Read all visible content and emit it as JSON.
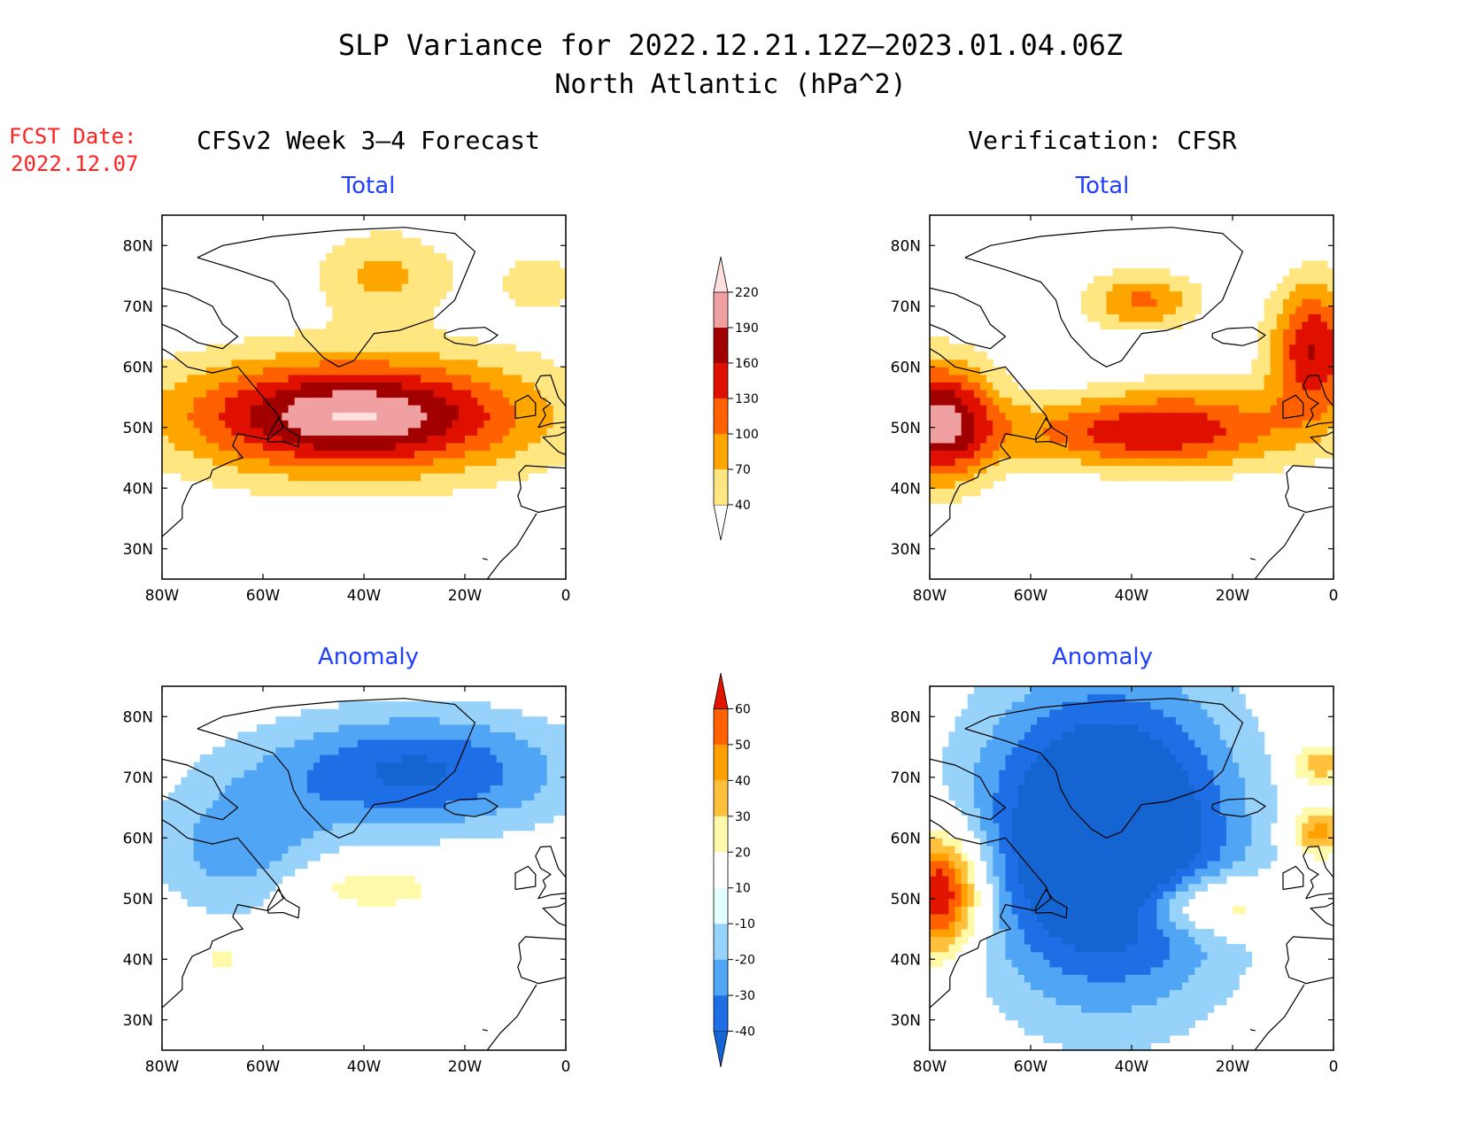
{
  "title_line1": "SLP Variance for 2022.12.21.12Z–2023.01.04.06Z",
  "title_line2": "North Atlantic (hPa^2)",
  "fcst_label": "FCST Date:",
  "fcst_date": "2022.12.07",
  "left_column_title": "CFSv2 Week 3–4 Forecast",
  "right_column_title": "Verification: CFSR",
  "colors": {
    "title": "#000000",
    "fcst": "#ff2020",
    "panel_title": "#2040ff",
    "coast": "#000000",
    "total_scale": [
      "#ffffff",
      "#ffe680",
      "#ffa500",
      "#ff6000",
      "#e01000",
      "#a00000",
      "#f0a0a0",
      "#ffe0e0"
    ],
    "anomaly_scale": [
      "#1464d2",
      "#1e6ee6",
      "#50a5f5",
      "#96d2fa",
      "#e1ffff",
      "#ffffff",
      "#fffaaa",
      "#ffc03c",
      "#ffa000",
      "#ff6000",
      "#e11400",
      "#a50000"
    ]
  },
  "chart_data": [
    {
      "type": "heatmap",
      "panel": "forecast-total",
      "title": "Total",
      "x_ticks": [
        "80W",
        "60W",
        "40W",
        "20W",
        "0"
      ],
      "y_ticks": [
        "80N",
        "70N",
        "60N",
        "50N",
        "40N",
        "30N"
      ],
      "xlim": [
        -80,
        0
      ],
      "ylim": [
        25,
        85
      ],
      "scale": "total",
      "fields": [
        {
          "lon": -42,
          "lat": 52,
          "amp": 205,
          "sx": 24,
          "sy": 6.5
        },
        {
          "lon": -36,
          "lat": 75,
          "amp": 60,
          "sx": 9,
          "sy": 5
        },
        {
          "lon": -5,
          "lat": 74,
          "amp": 30,
          "sx": 8,
          "sy": 5
        }
      ],
      "base": 18
    },
    {
      "type": "heatmap",
      "panel": "verification-total",
      "title": "Total",
      "x_ticks": [
        "80W",
        "60W",
        "40W",
        "20W",
        "0"
      ],
      "y_ticks": [
        "80N",
        "70N",
        "60N",
        "50N",
        "40N",
        "30N"
      ],
      "xlim": [
        -80,
        0
      ],
      "ylim": [
        25,
        85
      ],
      "scale": "total",
      "fields": [
        {
          "lon": -78,
          "lat": 51,
          "amp": 190,
          "sx": 8,
          "sy": 7
        },
        {
          "lon": -28,
          "lat": 50,
          "amp": 120,
          "sx": 16,
          "sy": 5
        },
        {
          "lon": -50,
          "lat": 49,
          "amp": 70,
          "sx": 14,
          "sy": 4
        },
        {
          "lon": -4,
          "lat": 63,
          "amp": 150,
          "sx": 6,
          "sy": 8
        },
        {
          "lon": -38,
          "lat": 71,
          "amp": 95,
          "sx": 8,
          "sy": 3.5
        }
      ],
      "base": 10
    },
    {
      "type": "heatmap",
      "panel": "forecast-anomaly",
      "title": "Anomaly",
      "x_ticks": [
        "80W",
        "60W",
        "40W",
        "20W",
        "0"
      ],
      "y_ticks": [
        "80N",
        "70N",
        "60N",
        "50N",
        "40N",
        "30N"
      ],
      "xlim": [
        -80,
        0
      ],
      "ylim": [
        25,
        85
      ],
      "scale": "anomaly",
      "fields": [
        {
          "lon": -30,
          "lat": 71,
          "amp": -42,
          "sx": 22,
          "sy": 7
        },
        {
          "lon": -65,
          "lat": 58,
          "amp": -25,
          "sx": 12,
          "sy": 8
        },
        {
          "lon": -40,
          "lat": 52,
          "amp": 18,
          "sx": 12,
          "sy": 3
        },
        {
          "lon": -68,
          "lat": 40,
          "amp": 14,
          "sx": 4,
          "sy": 2
        }
      ],
      "base": 0
    },
    {
      "type": "heatmap",
      "panel": "verification-anomaly",
      "title": "Anomaly",
      "x_ticks": [
        "80W",
        "60W",
        "40W",
        "20W",
        "0"
      ],
      "y_ticks": [
        "80N",
        "70N",
        "60N",
        "50N",
        "40N",
        "30N"
      ],
      "xlim": [
        -80,
        0
      ],
      "ylim": [
        25,
        85
      ],
      "scale": "anomaly",
      "fields": [
        {
          "lon": -45,
          "lat": 60,
          "amp": -70,
          "sx": 18,
          "sy": 18
        },
        {
          "lon": -78,
          "lat": 51,
          "amp": 70,
          "sx": 6,
          "sy": 7
        },
        {
          "lon": -24,
          "lat": 49,
          "amp": 35,
          "sx": 10,
          "sy": 3.5
        },
        {
          "lon": -3,
          "lat": 72,
          "amp": 30,
          "sx": 4,
          "sy": 2.5
        },
        {
          "lon": -3,
          "lat": 61,
          "amp": 38,
          "sx": 4,
          "sy": 3
        }
      ],
      "base": 0
    }
  ],
  "colorbars": [
    {
      "name": "total-colorbar",
      "labels": [
        "40",
        "70",
        "100",
        "130",
        "160",
        "190",
        "220"
      ],
      "scale": "total"
    },
    {
      "name": "anomaly-colorbar",
      "labels": [
        "-40",
        "-30",
        "-20",
        "-10",
        "10",
        "20",
        "30",
        "40",
        "50",
        "60"
      ],
      "scale": "anomaly"
    }
  ]
}
